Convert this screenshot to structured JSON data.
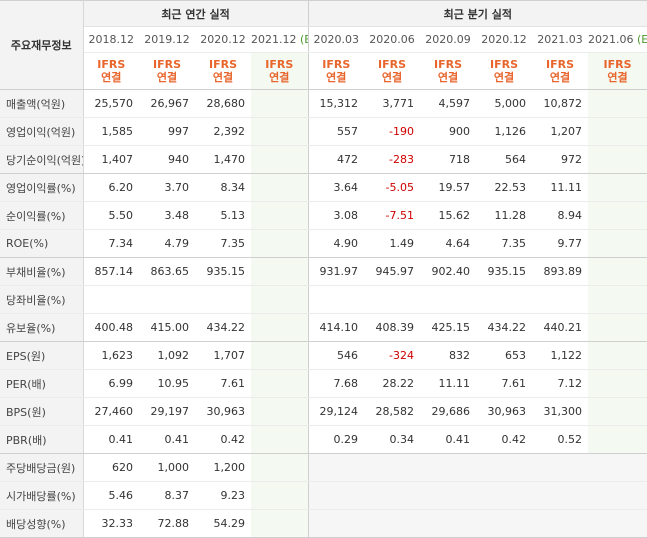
{
  "header": {
    "label_title": "주요재무정보",
    "annual_group": "최근 연간 실적",
    "quarterly_group": "최근 분기 실적"
  },
  "annual_periods": [
    "2018.12",
    "2019.12",
    "2020.12",
    "2021.12"
  ],
  "quarterly_periods": [
    "2020.03",
    "2020.06",
    "2020.09",
    "2020.12",
    "2021.03",
    "2021.06"
  ],
  "estimate_mark": "(E)",
  "accounting": {
    "line1": "IFRS",
    "line2": "연결"
  },
  "rows": [
    {
      "label": "매출액(억원)",
      "annual": [
        "25,570",
        "26,967",
        "28,680",
        ""
      ],
      "quarterly": [
        "15,312",
        "3,771",
        "4,597",
        "5,000",
        "10,872",
        ""
      ]
    },
    {
      "label": "영업이익(억원)",
      "annual": [
        "1,585",
        "997",
        "2,392",
        ""
      ],
      "quarterly": [
        "557",
        "-190",
        "900",
        "1,126",
        "1,207",
        ""
      ]
    },
    {
      "label": "당기순이익(억원)",
      "annual": [
        "1,407",
        "940",
        "1,470",
        ""
      ],
      "quarterly": [
        "472",
        "-283",
        "718",
        "564",
        "972",
        ""
      ]
    },
    {
      "label": "영업이익률(%)",
      "annual": [
        "6.20",
        "3.70",
        "8.34",
        ""
      ],
      "quarterly": [
        "3.64",
        "-5.05",
        "19.57",
        "22.53",
        "11.11",
        ""
      ]
    },
    {
      "label": "순이익률(%)",
      "annual": [
        "5.50",
        "3.48",
        "5.13",
        ""
      ],
      "quarterly": [
        "3.08",
        "-7.51",
        "15.62",
        "11.28",
        "8.94",
        ""
      ]
    },
    {
      "label": "ROE(%)",
      "annual": [
        "7.34",
        "4.79",
        "7.35",
        ""
      ],
      "quarterly": [
        "4.90",
        "1.49",
        "4.64",
        "7.35",
        "9.77",
        ""
      ]
    },
    {
      "label": "부채비율(%)",
      "annual": [
        "857.14",
        "863.65",
        "935.15",
        ""
      ],
      "quarterly": [
        "931.97",
        "945.97",
        "902.40",
        "935.15",
        "893.89",
        ""
      ]
    },
    {
      "label": "당좌비율(%)",
      "annual": [
        "",
        "",
        "",
        ""
      ],
      "quarterly": [
        "",
        "",
        "",
        "",
        "",
        ""
      ]
    },
    {
      "label": "유보율(%)",
      "annual": [
        "400.48",
        "415.00",
        "434.22",
        ""
      ],
      "quarterly": [
        "414.10",
        "408.39",
        "425.15",
        "434.22",
        "440.21",
        ""
      ]
    },
    {
      "label": "EPS(원)",
      "annual": [
        "1,623",
        "1,092",
        "1,707",
        ""
      ],
      "quarterly": [
        "546",
        "-324",
        "832",
        "653",
        "1,122",
        ""
      ]
    },
    {
      "label": "PER(배)",
      "annual": [
        "6.99",
        "10.95",
        "7.61",
        ""
      ],
      "quarterly": [
        "7.68",
        "28.22",
        "11.11",
        "7.61",
        "7.12",
        ""
      ]
    },
    {
      "label": "BPS(원)",
      "annual": [
        "27,460",
        "29,197",
        "30,963",
        ""
      ],
      "quarterly": [
        "29,124",
        "28,582",
        "29,686",
        "30,963",
        "31,300",
        ""
      ]
    },
    {
      "label": "PBR(배)",
      "annual": [
        "0.41",
        "0.41",
        "0.42",
        ""
      ],
      "quarterly": [
        "0.29",
        "0.34",
        "0.41",
        "0.42",
        "0.52",
        ""
      ]
    },
    {
      "label": "주당배당금(원)",
      "annual": [
        "620",
        "1,000",
        "1,200",
        ""
      ],
      "quarterly": [
        "",
        "",
        "",
        "",
        "",
        ""
      ]
    },
    {
      "label": "시가배당률(%)",
      "annual": [
        "5.46",
        "8.37",
        "9.23",
        ""
      ],
      "quarterly": [
        "",
        "",
        "",
        "",
        "",
        ""
      ]
    },
    {
      "label": "배당성향(%)",
      "annual": [
        "32.33",
        "72.88",
        "54.29",
        ""
      ],
      "quarterly": [
        "",
        "",
        "",
        "",
        "",
        ""
      ]
    }
  ],
  "colors": {
    "negative": "#d00000",
    "ifrs": "#e8652c",
    "estimate_bg": "#f4f9f1"
  }
}
